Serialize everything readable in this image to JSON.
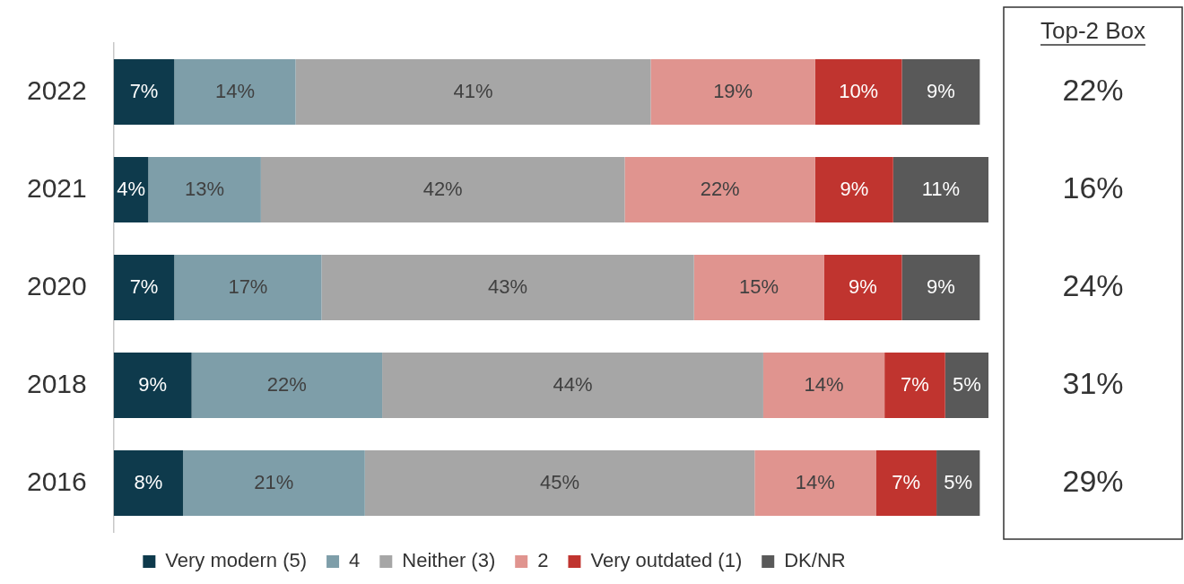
{
  "chart_data": {
    "type": "bar",
    "orientation": "horizontal",
    "stacked": true,
    "data_labels": true,
    "tick_labels": "y",
    "grid": false,
    "legend": "bottom",
    "categories": [
      "2022",
      "2021",
      "2020",
      "2018",
      "2016"
    ],
    "xlim": [
      0,
      101
    ],
    "series": [
      {
        "name": "Very modern (5)",
        "color": "#0e3a4c",
        "values": [
          7,
          4,
          7,
          9,
          8
        ],
        "value_labels": [
          "7%",
          "4%",
          "7%",
          "9%",
          "8%"
        ]
      },
      {
        "name": "4",
        "color": "#7e9ea9",
        "values": [
          14,
          13,
          17,
          22,
          21
        ],
        "value_labels": [
          "14%",
          "13%",
          "17%",
          "22%",
          "21%"
        ]
      },
      {
        "name": "Neither (3)",
        "color": "#a6a6a6",
        "values": [
          41,
          42,
          43,
          44,
          45
        ],
        "value_labels": [
          "41%",
          "42%",
          "43%",
          "44%",
          "45%"
        ]
      },
      {
        "name": "2",
        "color": "#e0948f",
        "values": [
          19,
          22,
          15,
          14,
          14
        ],
        "value_labels": [
          "19%",
          "22%",
          "15%",
          "14%",
          "14%"
        ]
      },
      {
        "name": "Very outdated (1)",
        "color": "#c0342f",
        "values": [
          10,
          9,
          9,
          7,
          7
        ],
        "value_labels": [
          "10%",
          "9%",
          "9%",
          "7%",
          "7%"
        ]
      },
      {
        "name": "DK/NR",
        "color": "#595959",
        "values": [
          9,
          11,
          9,
          5,
          5
        ],
        "value_labels": [
          "9%",
          "11%",
          "9%",
          "5%",
          "5%"
        ]
      }
    ],
    "top_2_box": {
      "title": "Top-2 Box",
      "values": [
        22,
        16,
        24,
        31,
        29
      ],
      "value_labels": [
        "22%",
        "16%",
        "24%",
        "31%",
        "29%"
      ]
    }
  }
}
